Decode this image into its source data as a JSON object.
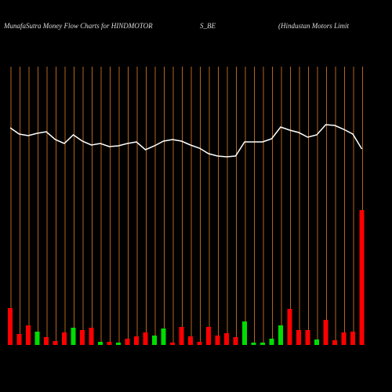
{
  "chart_data": {
    "type": "money-flow",
    "title_parts": [
      "MunafaSutra  Money Flow  Charts for HINDMOTOR",
      "S_BE",
      "(Hindustan  Motors Limit"
    ],
    "categories": [
      null,
      null,
      null,
      null,
      null,
      null,
      null,
      null,
      null,
      null,
      null,
      null,
      null,
      null,
      null,
      null,
      null,
      null,
      null,
      null,
      null,
      null,
      null,
      null,
      null,
      null,
      null,
      null,
      null,
      null,
      null,
      null,
      null,
      null,
      null,
      null,
      null,
      null,
      null,
      null
    ],
    "ylim": [
      0,
      440
    ],
    "category_line_color": "#b5651d",
    "series": [
      {
        "type": "bar",
        "values": [
          47,
          14,
          25,
          17,
          10,
          5,
          16,
          22,
          19,
          22,
          4,
          4,
          3,
          8,
          11,
          16,
          12,
          21,
          3,
          23,
          11,
          4,
          23,
          12,
          15,
          10,
          30,
          3,
          3,
          8,
          25,
          46,
          19,
          19,
          7,
          32,
          6,
          16,
          17,
          172
        ],
        "colors": [
          "#ff0000",
          "#ff0000",
          "#ff0000",
          "#00dd00",
          "#ff0000",
          "#ff0000",
          "#ff0000",
          "#00dd00",
          "#ff0000",
          "#ff0000",
          "#00dd00",
          "#ff0000",
          "#00dd00",
          "#ff0000",
          "#ff0000",
          "#ff0000",
          "#00dd00",
          "#00dd00",
          "#ff0000",
          "#ff0000",
          "#ff0000",
          "#ff0000",
          "#ff0000",
          "#ff0000",
          "#ff0000",
          "#ff0000",
          "#00dd00",
          "#00dd00",
          "#00dd00",
          "#00dd00",
          "#00dd00",
          "#ff0000",
          "#ff0000",
          "#ff0000",
          "#00dd00",
          "#ff0000",
          "#ff0000",
          "#ff0000",
          "#ff0000",
          "#ff0000"
        ]
      },
      {
        "type": "line",
        "color": "#ffffff",
        "values": [
          277,
          269,
          267,
          270,
          272,
          262,
          257,
          268,
          260,
          255,
          257,
          253,
          254,
          257,
          259,
          249,
          254,
          260,
          262,
          260,
          255,
          251,
          244,
          241,
          240,
          241,
          259,
          259,
          259,
          263,
          278,
          274,
          271,
          265,
          268,
          281,
          280,
          275,
          269,
          250
        ]
      }
    ]
  }
}
